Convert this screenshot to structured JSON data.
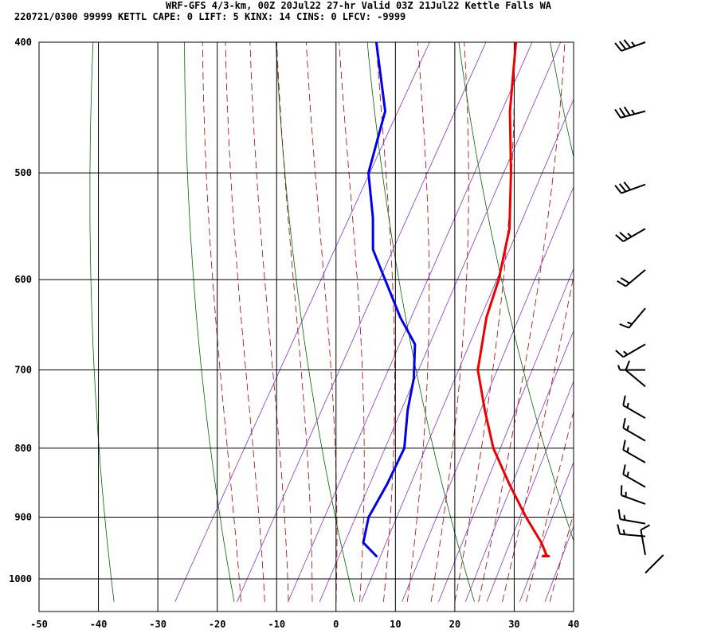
{
  "header": {
    "line1": "WRF-GFS 4/3-km, 00Z 20Jul22 27-hr Valid 03Z 21Jul22 Kettle Falls WA",
    "line2": "220721/0300 99999  KETTL   CAPE:     0 LIFT:     5 KINX:    14 CINS:     0 LFCV: -9999"
  },
  "colors": {
    "temperature": "#ee0000",
    "dewpoint": "#0000ee",
    "dry_adiabat": "#006600",
    "moist_adiabat": "#aa0000",
    "mixing_ratio": "#8833cc",
    "grid": "#000000"
  },
  "chart_data": {
    "type": "line",
    "title": "",
    "xlabel": "",
    "ylabel": "",
    "x_ticks": [
      "-50",
      "-40",
      "-30",
      "-20",
      "-10",
      "0",
      "10",
      "20",
      "30",
      "40"
    ],
    "y_ticks": [
      "400",
      "500",
      "600",
      "700",
      "800",
      "900",
      "1000"
    ],
    "xlim": [
      -50,
      40
    ],
    "ylim": [
      1040,
      400
    ],
    "y_scale": "log-pressure",
    "grid": true,
    "series": [
      {
        "role": "temperature",
        "color": "#ee0000",
        "points": [
          [
            -22.5,
            400
          ],
          [
            -17,
            450
          ],
          [
            -11,
            500
          ],
          [
            -6,
            550
          ],
          [
            -3,
            600
          ],
          [
            -1.5,
            640
          ],
          [
            2,
            700
          ],
          [
            7,
            750
          ],
          [
            12,
            800
          ],
          [
            18,
            850
          ],
          [
            24,
            900
          ],
          [
            29,
            940
          ],
          [
            31,
            960
          ],
          [
            30.5,
            962
          ],
          [
            31.5,
            962
          ]
        ]
      },
      {
        "role": "dewpoint",
        "color": "#0000ee",
        "points": [
          [
            -46,
            400
          ],
          [
            -38,
            450
          ],
          [
            -35,
            500
          ],
          [
            -30,
            540
          ],
          [
            -27,
            570
          ],
          [
            -16,
            640
          ],
          [
            -11,
            670
          ],
          [
            -8,
            710
          ],
          [
            -6,
            750
          ],
          [
            -3,
            800
          ],
          [
            -2.5,
            850
          ],
          [
            -2.5,
            900
          ],
          [
            -1,
            940
          ],
          [
            2.5,
            962
          ]
        ]
      }
    ],
    "wind_barbs": [
      {
        "p": 400,
        "dir": 250,
        "kt": 35
      },
      {
        "p": 450,
        "dir": 255,
        "kt": 35
      },
      {
        "p": 510,
        "dir": 250,
        "kt": 30
      },
      {
        "p": 550,
        "dir": 240,
        "kt": 25
      },
      {
        "p": 590,
        "dir": 230,
        "kt": 20
      },
      {
        "p": 630,
        "dir": 220,
        "kt": 15
      },
      {
        "p": 670,
        "dir": 240,
        "kt": 15
      },
      {
        "p": 700,
        "dir": 270,
        "kt": 5
      },
      {
        "p": 720,
        "dir": 310,
        "kt": 10
      },
      {
        "p": 760,
        "dir": 300,
        "kt": 15
      },
      {
        "p": 790,
        "dir": 300,
        "kt": 15
      },
      {
        "p": 820,
        "dir": 300,
        "kt": 15
      },
      {
        "p": 855,
        "dir": 300,
        "kt": 15
      },
      {
        "p": 880,
        "dir": 290,
        "kt": 15
      },
      {
        "p": 910,
        "dir": 280,
        "kt": 15
      },
      {
        "p": 930,
        "dir": 275,
        "kt": 15
      },
      {
        "p": 960,
        "dir": 350,
        "kt": 10
      },
      {
        "p": 990,
        "dir": 45,
        "kt": 0
      }
    ]
  }
}
